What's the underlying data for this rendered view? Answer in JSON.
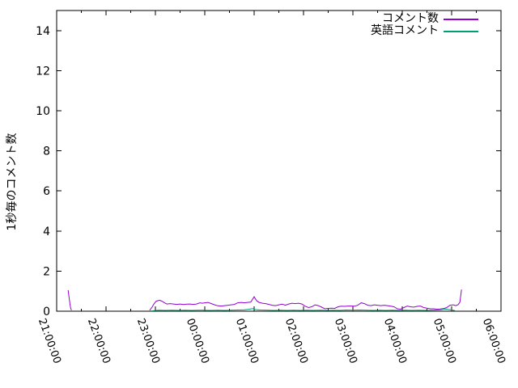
{
  "chart_data": {
    "type": "line",
    "title": "",
    "xlabel": "",
    "ylabel": "1秒毎のコメント数",
    "ylim": [
      0,
      15
    ],
    "yticks": [
      0,
      2,
      4,
      6,
      8,
      10,
      12,
      14
    ],
    "xtick_labels": [
      "21:00:00",
      "22:00:00",
      "23:00:00",
      "00:00:00",
      "01:00:00",
      "02:00:00",
      "03:00:00",
      "04:00:00",
      "05:00:00",
      "06:00:00"
    ],
    "x_minor_tick_minutes": 30,
    "x_range_minutes": 540,
    "grid": false,
    "legend_position": "top-right-inside",
    "background": "#ffffff",
    "axis_color": "#000000",
    "series": [
      {
        "name": "コメント数",
        "key": "comments",
        "color": "#9400d3",
        "segments": [
          [
            [
              "21:14",
              1.05
            ],
            [
              "21:15",
              0.7
            ],
            [
              "21:16",
              0.4
            ],
            [
              "21:17",
              0.15
            ],
            [
              "21:18",
              0.05
            ]
          ],
          [
            [
              "22:53",
              0.05
            ],
            [
              "22:56",
              0.2
            ],
            [
              "22:58",
              0.35
            ],
            [
              "23:01",
              0.5
            ],
            [
              "23:05",
              0.55
            ],
            [
              "23:08",
              0.5
            ],
            [
              "23:11",
              0.42
            ],
            [
              "23:14",
              0.36
            ],
            [
              "23:18",
              0.38
            ],
            [
              "23:22",
              0.36
            ],
            [
              "23:26",
              0.34
            ],
            [
              "23:30",
              0.36
            ],
            [
              "23:34",
              0.33
            ],
            [
              "23:38",
              0.35
            ],
            [
              "23:42",
              0.36
            ],
            [
              "23:46",
              0.34
            ],
            [
              "23:50",
              0.36
            ],
            [
              "23:54",
              0.42
            ],
            [
              "23:57",
              0.4
            ],
            [
              "00:00",
              0.42
            ],
            [
              "00:04",
              0.44
            ],
            [
              "00:08",
              0.38
            ],
            [
              "00:12",
              0.32
            ],
            [
              "00:16",
              0.27
            ],
            [
              "00:20",
              0.26
            ],
            [
              "00:24",
              0.28
            ],
            [
              "00:28",
              0.3
            ],
            [
              "00:32",
              0.32
            ],
            [
              "00:36",
              0.34
            ],
            [
              "00:40",
              0.42
            ],
            [
              "00:44",
              0.44
            ],
            [
              "00:48",
              0.42
            ],
            [
              "00:52",
              0.44
            ],
            [
              "00:56",
              0.46
            ],
            [
              "01:00",
              0.72
            ],
            [
              "01:03",
              0.52
            ],
            [
              "01:06",
              0.44
            ],
            [
              "01:10",
              0.4
            ],
            [
              "01:14",
              0.38
            ],
            [
              "01:18",
              0.34
            ],
            [
              "01:22",
              0.3
            ],
            [
              "01:26",
              0.28
            ],
            [
              "01:30",
              0.32
            ],
            [
              "01:34",
              0.35
            ],
            [
              "01:38",
              0.3
            ],
            [
              "01:42",
              0.36
            ],
            [
              "01:46",
              0.4
            ],
            [
              "01:50",
              0.38
            ],
            [
              "01:54",
              0.4
            ],
            [
              "01:58",
              0.36
            ],
            [
              "02:02",
              0.25
            ],
            [
              "02:06",
              0.18
            ],
            [
              "02:10",
              0.22
            ],
            [
              "02:14",
              0.32
            ],
            [
              "02:18",
              0.28
            ],
            [
              "02:22",
              0.2
            ],
            [
              "02:26",
              0.12
            ],
            [
              "02:30",
              0.14
            ],
            [
              "02:34",
              0.15
            ],
            [
              "02:38",
              0.14
            ],
            [
              "02:42",
              0.22
            ],
            [
              "02:46",
              0.25
            ],
            [
              "02:50",
              0.24
            ],
            [
              "02:54",
              0.26
            ],
            [
              "02:58",
              0.26
            ],
            [
              "03:02",
              0.25
            ],
            [
              "03:06",
              0.3
            ],
            [
              "03:10",
              0.42
            ],
            [
              "03:14",
              0.38
            ],
            [
              "03:18",
              0.3
            ],
            [
              "03:22",
              0.28
            ],
            [
              "03:26",
              0.32
            ],
            [
              "03:30",
              0.3
            ],
            [
              "03:34",
              0.28
            ],
            [
              "03:38",
              0.3
            ],
            [
              "03:42",
              0.28
            ],
            [
              "03:46",
              0.25
            ],
            [
              "03:50",
              0.22
            ],
            [
              "03:54",
              0.12
            ],
            [
              "03:58",
              0.1
            ],
            [
              "04:02",
              0.18
            ],
            [
              "04:06",
              0.26
            ],
            [
              "04:10",
              0.22
            ],
            [
              "04:14",
              0.2
            ],
            [
              "04:18",
              0.24
            ],
            [
              "04:22",
              0.26
            ],
            [
              "04:26",
              0.18
            ],
            [
              "04:30",
              0.15
            ],
            [
              "04:34",
              0.12
            ],
            [
              "04:38",
              0.12
            ],
            [
              "04:42",
              0.1
            ],
            [
              "04:46",
              0.11
            ],
            [
              "04:50",
              0.13
            ],
            [
              "04:54",
              0.18
            ],
            [
              "04:58",
              0.3
            ],
            [
              "05:02",
              0.32
            ],
            [
              "05:05",
              0.28
            ],
            [
              "05:08",
              0.33
            ],
            [
              "05:10",
              0.45
            ],
            [
              "05:12",
              1.08
            ]
          ]
        ]
      },
      {
        "name": "英語コメント",
        "key": "english-comments",
        "color": "#009e73",
        "segments": [
          [
            [
              "22:56",
              0.02
            ],
            [
              "23:04",
              0.05
            ],
            [
              "23:12",
              0.04
            ],
            [
              "23:20",
              0.05
            ],
            [
              "23:28",
              0.04
            ],
            [
              "23:36",
              0.05
            ],
            [
              "23:44",
              0.04
            ],
            [
              "23:52",
              0.05
            ],
            [
              "00:00",
              0.05
            ],
            [
              "00:08",
              0.04
            ],
            [
              "00:16",
              0.05
            ],
            [
              "00:24",
              0.04
            ],
            [
              "00:32",
              0.05
            ],
            [
              "00:40",
              0.06
            ],
            [
              "00:48",
              0.07
            ],
            [
              "00:54",
              0.1
            ],
            [
              "00:58",
              0.13
            ],
            [
              "01:02",
              0.08
            ],
            [
              "01:08",
              0.06
            ],
            [
              "01:16",
              0.05
            ],
            [
              "01:24",
              0.04
            ],
            [
              "01:32",
              0.05
            ],
            [
              "01:40",
              0.04
            ],
            [
              "01:48",
              0.05
            ],
            [
              "01:56",
              0.04
            ],
            [
              "02:04",
              0.05
            ],
            [
              "02:12",
              0.04
            ],
            [
              "02:20",
              0.05
            ],
            [
              "02:28",
              0.04
            ],
            [
              "02:36",
              0.05
            ],
            [
              "02:44",
              0.04
            ],
            [
              "02:52",
              0.06
            ],
            [
              "03:00",
              0.05
            ],
            [
              "03:08",
              0.06
            ],
            [
              "03:16",
              0.05
            ],
            [
              "03:24",
              0.04
            ],
            [
              "03:32",
              0.05
            ],
            [
              "03:40",
              0.04
            ],
            [
              "03:48",
              0.05
            ],
            [
              "03:56",
              0.04
            ],
            [
              "04:04",
              0.05
            ],
            [
              "04:12",
              0.04
            ],
            [
              "04:20",
              0.05
            ],
            [
              "04:28",
              0.04
            ],
            [
              "04:36",
              0.05
            ],
            [
              "04:44",
              0.06
            ],
            [
              "04:48",
              0.08
            ],
            [
              "04:52",
              0.11
            ],
            [
              "04:56",
              0.09
            ],
            [
              "05:00",
              0.06
            ],
            [
              "05:04",
              0.03
            ]
          ]
        ]
      }
    ]
  }
}
